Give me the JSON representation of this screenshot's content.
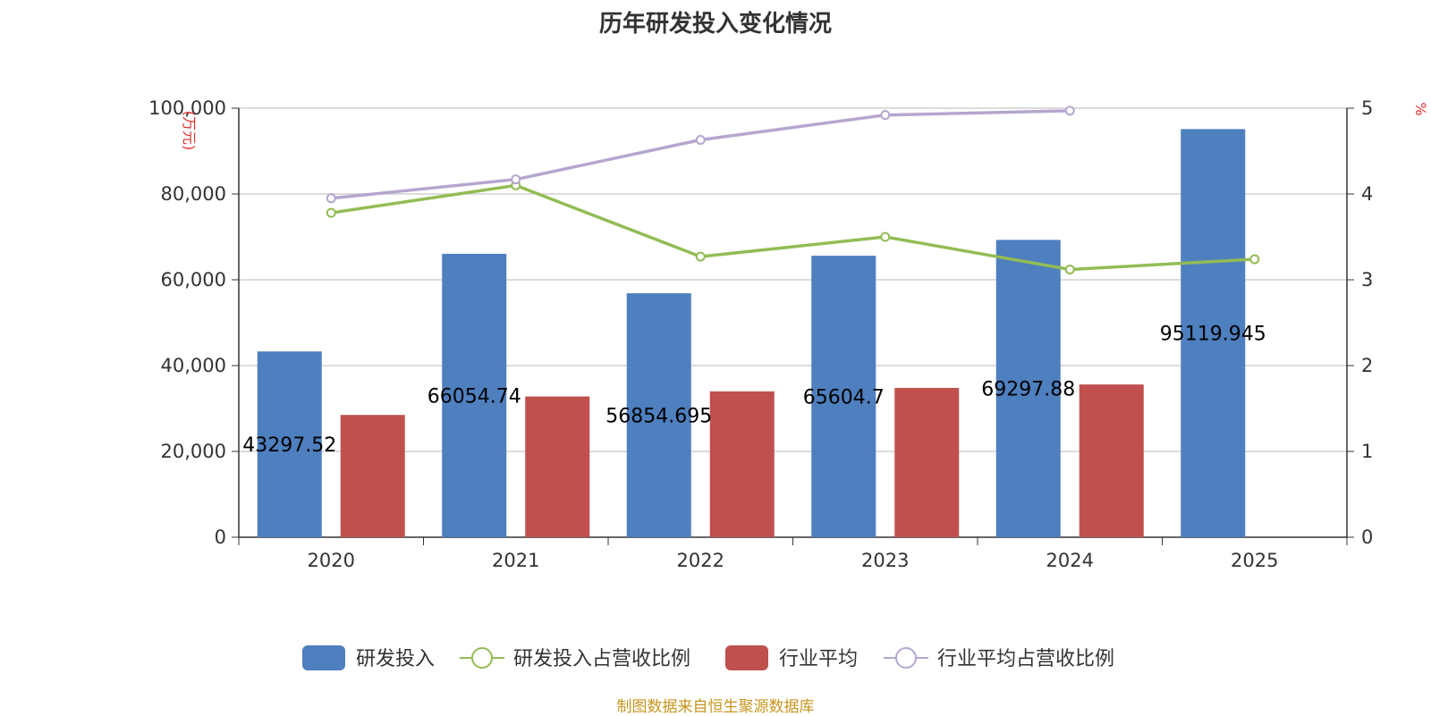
{
  "chart_data": {
    "type": "bar",
    "title": "历年研发投入变化情况",
    "categories": [
      "2020",
      "2021",
      "2022",
      "2023",
      "2024",
      "2025"
    ],
    "series": [
      {
        "name": "研发投入",
        "type": "bar",
        "axis": "left",
        "color": "#4e7fbe",
        "values": [
          43297.52,
          66054.74,
          56854.695,
          65604.7,
          69297.88,
          95119.945
        ]
      },
      {
        "name": "研发投入占营收比例",
        "type": "line",
        "axis": "right",
        "color": "#92bc55",
        "values": [
          3.78,
          4.1,
          3.27,
          3.5,
          3.12,
          3.24
        ]
      },
      {
        "name": "行业平均",
        "type": "bar",
        "axis": "left",
        "color": "#c0504d",
        "values": [
          28500,
          32800,
          34000,
          34800,
          35600,
          null
        ]
      },
      {
        "name": "行业平均占营收比例",
        "type": "line",
        "axis": "right",
        "color": "#b5a6cf",
        "values": [
          3.95,
          4.17,
          4.63,
          4.92,
          4.97,
          null
        ]
      }
    ],
    "data_labels": [
      "43297.52",
      "66054.74",
      "56854.695",
      "65604.7",
      "69297.88",
      "95119.945"
    ],
    "y_left": {
      "label": "(万元)",
      "ylim": [
        0,
        100000
      ],
      "ticks": [
        "0",
        "20,000",
        "40,000",
        "60,000",
        "80,000",
        "100,000"
      ]
    },
    "y_right": {
      "label": "%",
      "ylim": [
        0,
        5
      ],
      "ticks": [
        "0",
        "1",
        "2",
        "3",
        "4",
        "5"
      ]
    },
    "grid": true,
    "legend_position": "bottom"
  },
  "footer": "制图数据来自恒生聚源数据库"
}
